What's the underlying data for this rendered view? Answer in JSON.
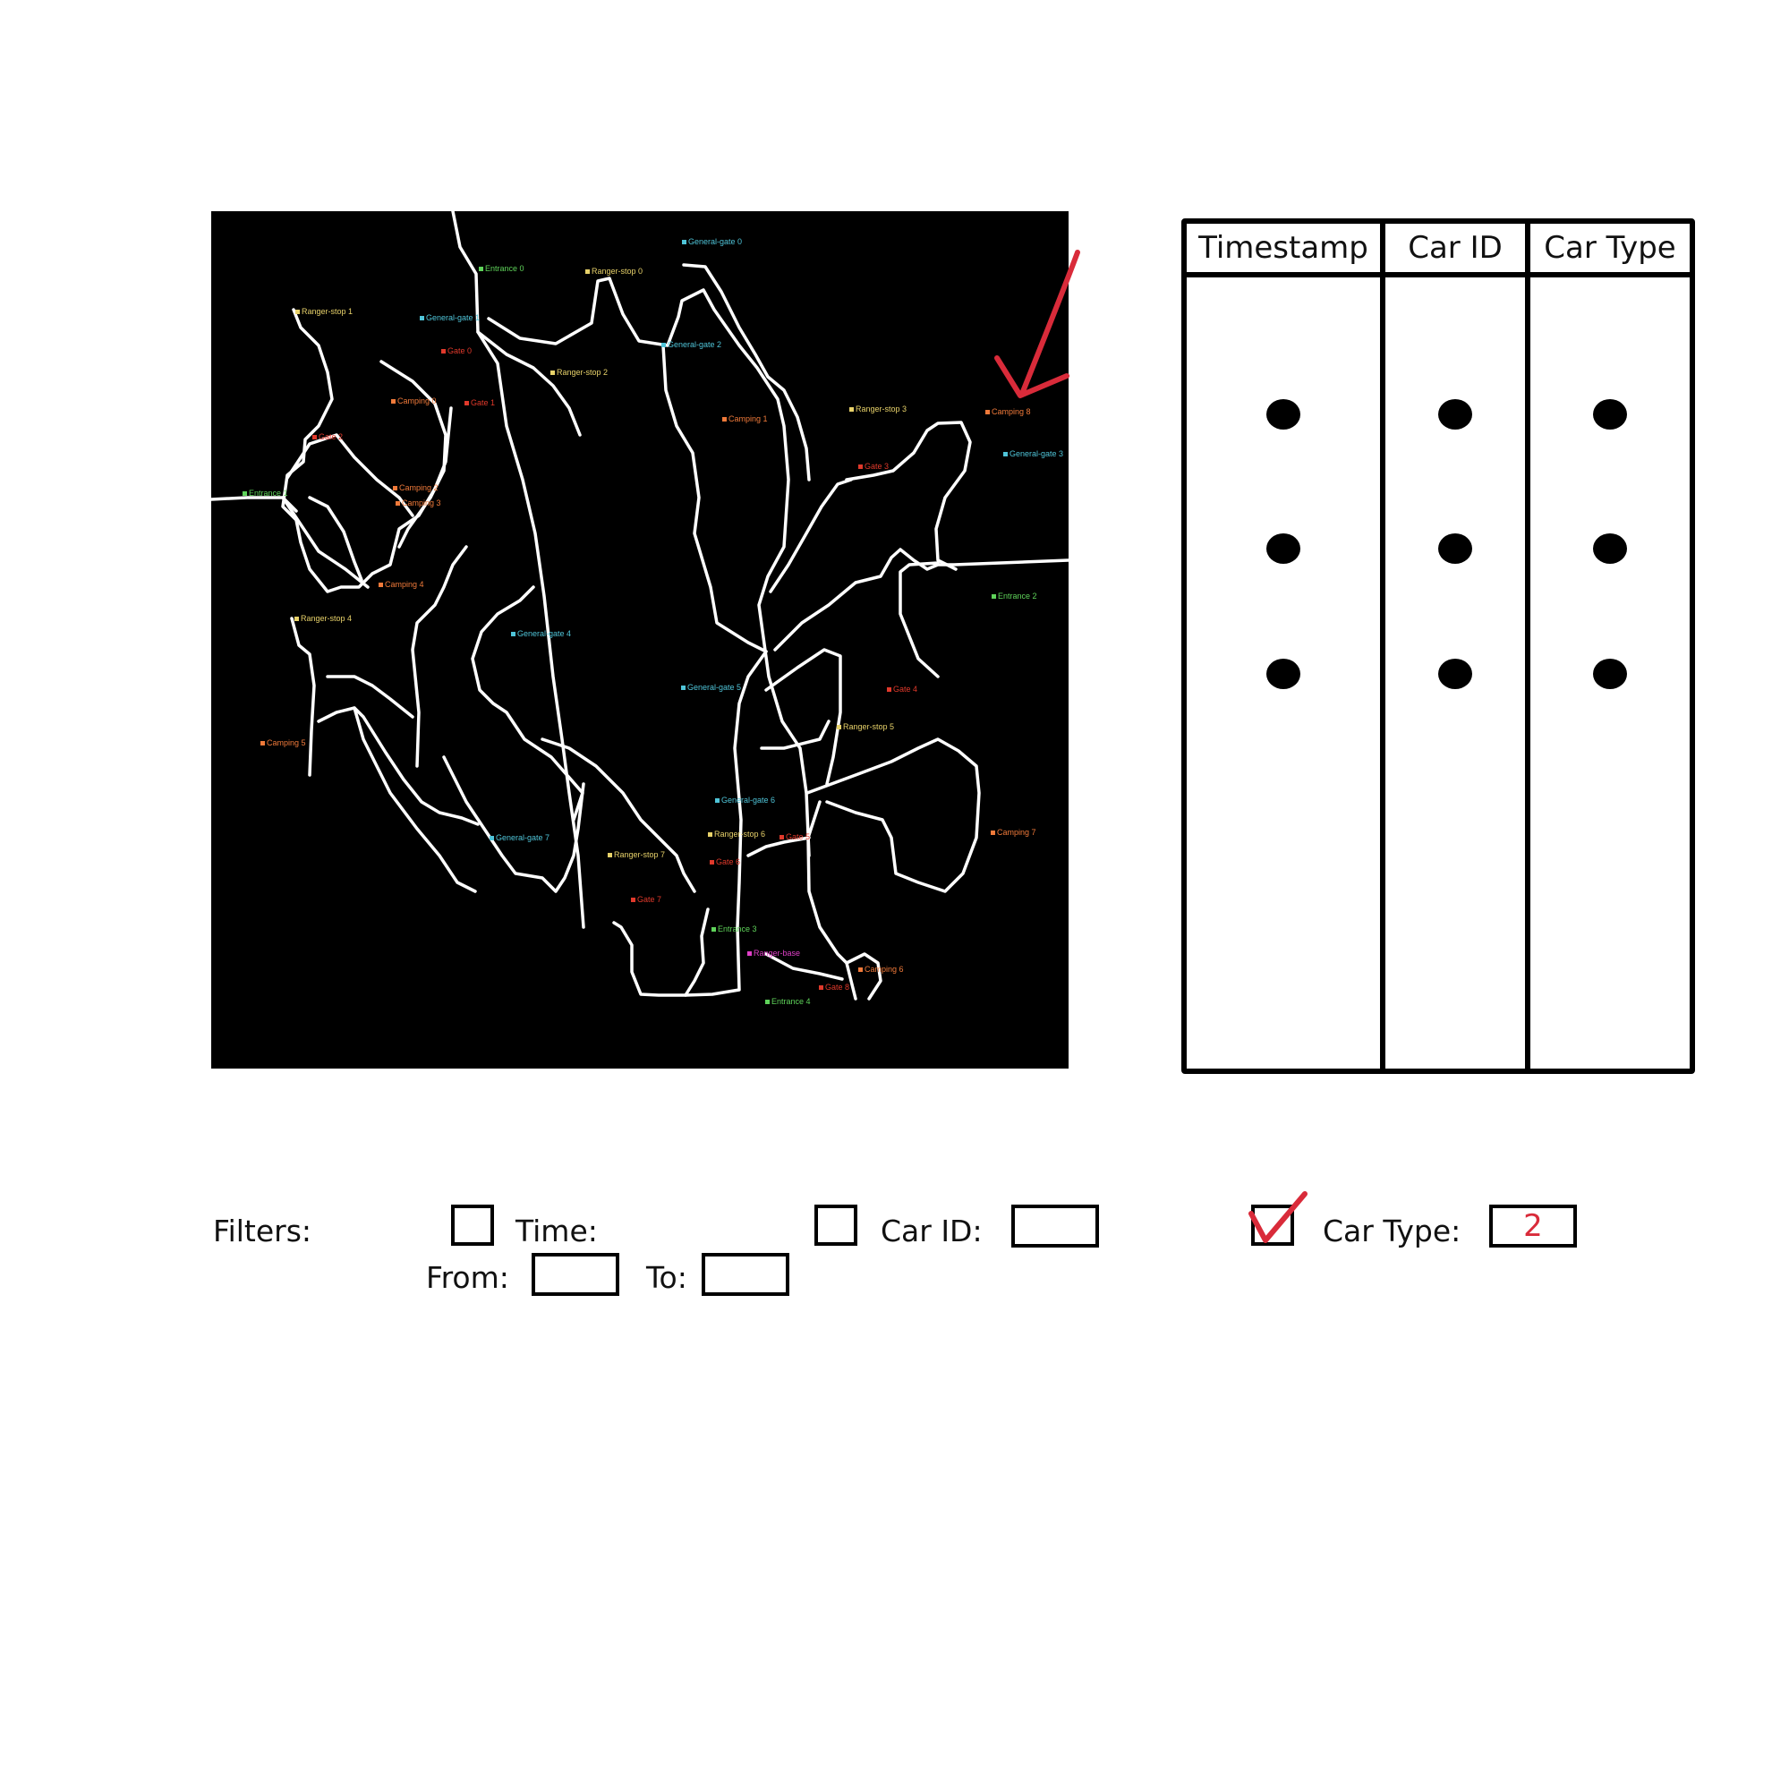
{
  "map": {
    "labels": [
      {
        "text": "General-gate 0",
        "type": "general"
      },
      {
        "text": "Entrance 0",
        "type": "entrance"
      },
      {
        "text": "Ranger-stop 0",
        "type": "ranger"
      },
      {
        "text": "Ranger-stop 1",
        "type": "ranger"
      },
      {
        "text": "General-gate 1",
        "type": "general"
      },
      {
        "text": "General-gate 2",
        "type": "general"
      },
      {
        "text": "Gate 0",
        "type": "gate"
      },
      {
        "text": "Ranger-stop 2",
        "type": "ranger"
      },
      {
        "text": "Camping 0",
        "type": "camping"
      },
      {
        "text": "Gate 1",
        "type": "gate"
      },
      {
        "text": "Camping 1",
        "type": "camping"
      },
      {
        "text": "Ranger-stop 3",
        "type": "ranger"
      },
      {
        "text": "Camping 8",
        "type": "camping"
      },
      {
        "text": "Gate 2",
        "type": "gate"
      },
      {
        "text": "General-gate 3",
        "type": "general"
      },
      {
        "text": "Gate 3",
        "type": "gate"
      },
      {
        "text": "Camping 2",
        "type": "camping"
      },
      {
        "text": "Camping 3",
        "type": "camping"
      },
      {
        "text": "Entrance 1",
        "type": "entrance"
      },
      {
        "text": "Camping 4",
        "type": "camping"
      },
      {
        "text": "Entrance 2",
        "type": "entrance"
      },
      {
        "text": "Ranger-stop 4",
        "type": "ranger"
      },
      {
        "text": "General-gate 4",
        "type": "general"
      },
      {
        "text": "General-gate 5",
        "type": "general"
      },
      {
        "text": "Gate 4",
        "type": "gate"
      },
      {
        "text": "Ranger-stop 5",
        "type": "ranger"
      },
      {
        "text": "Camping 5",
        "type": "camping"
      },
      {
        "text": "General-gate 6",
        "type": "general"
      },
      {
        "text": "General-gate 7",
        "type": "general"
      },
      {
        "text": "Ranger-stop 6",
        "type": "ranger"
      },
      {
        "text": "Gate 5",
        "type": "gate"
      },
      {
        "text": "Camping 7",
        "type": "camping"
      },
      {
        "text": "Ranger-stop 7",
        "type": "ranger"
      },
      {
        "text": "Gate 6",
        "type": "gate"
      },
      {
        "text": "Gate 7",
        "type": "gate"
      },
      {
        "text": "Entrance 3",
        "type": "entrance"
      },
      {
        "text": "Ranger-base",
        "type": "base"
      },
      {
        "text": "Camping 6",
        "type": "camping"
      },
      {
        "text": "Gate 8",
        "type": "gate"
      },
      {
        "text": "Entrance 4",
        "type": "entrance"
      }
    ]
  },
  "table": {
    "headers": [
      "Timestamp",
      "Car ID",
      "Car Type"
    ]
  },
  "filters": {
    "label": "Filters:",
    "time": {
      "label": "Time:",
      "checked": false,
      "from_label": "From:",
      "from_value": "",
      "to_label": "To:",
      "to_value": ""
    },
    "car_id": {
      "label": "Car ID:",
      "checked": false,
      "value": ""
    },
    "car_type": {
      "label": "Car Type:",
      "checked": true,
      "value": "2"
    }
  },
  "colors": {
    "map_background": "#000000",
    "annotation": "#d92b3a"
  }
}
